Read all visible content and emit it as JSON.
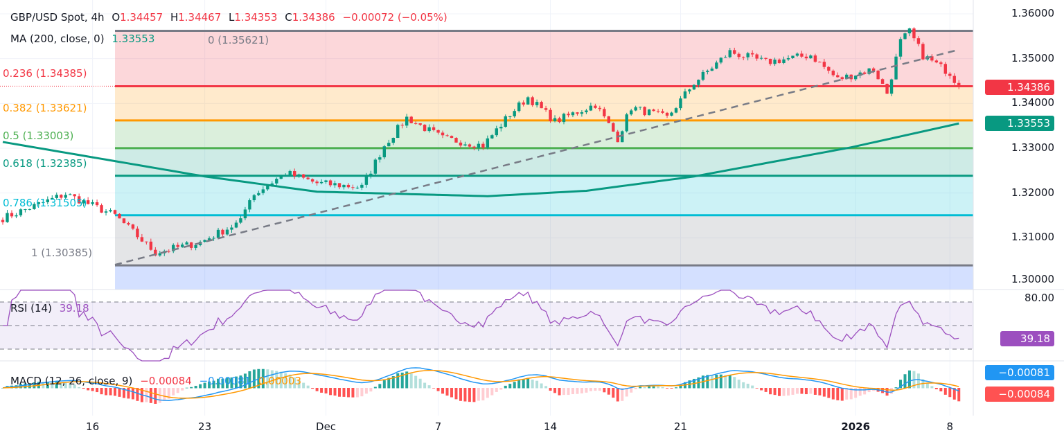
{
  "header": {
    "symbol": "GBP/USD Spot, 4h",
    "o_label": "O",
    "o": "1.34457",
    "h_label": "H",
    "h": "1.34467",
    "l_label": "L",
    "l": "1.34353",
    "c_label": "C",
    "c": "1.34386",
    "change": "−0.00072 (−0.05%)",
    "ma_label": "MA (200, close, 0)",
    "ma_value": "1.33553"
  },
  "colors": {
    "up": "#089981",
    "down": "#f23645",
    "ma": "#089981",
    "rsi": "#9c4fbf",
    "macd": "#2196f3",
    "signal": "#ff9800"
  },
  "chart_data": [
    {
      "type": "candlestick",
      "title": "GBP/USD Spot, 4h",
      "ylim": [
        1.3,
        1.36
      ],
      "y_ticks": [
        "1.36000",
        "1.35000",
        "1.34000",
        "1.33000",
        "1.32000",
        "1.31000",
        "1.30000"
      ],
      "x_ticks": [
        {
          "bar": 20,
          "label": "16"
        },
        {
          "bar": 45,
          "label": "23"
        },
        {
          "bar": 72,
          "label": "Dec"
        },
        {
          "bar": 97,
          "label": "7"
        },
        {
          "bar": 122,
          "label": "14"
        },
        {
          "bar": 151,
          "label": "21"
        },
        {
          "bar": 190,
          "label": "2026"
        },
        {
          "bar": 211,
          "label": "8"
        }
      ],
      "close_path": [
        {
          "bar": 0,
          "close": 1.3144
        },
        {
          "bar": 14,
          "close": 1.3198
        },
        {
          "bar": 25,
          "close": 1.315
        },
        {
          "bar": 34,
          "close": 1.3067
        },
        {
          "bar": 44,
          "close": 1.309
        },
        {
          "bar": 53,
          "close": 1.3136
        },
        {
          "bar": 55,
          "close": 1.319
        },
        {
          "bar": 63,
          "close": 1.3245
        },
        {
          "bar": 70,
          "close": 1.3222
        },
        {
          "bar": 80,
          "close": 1.3213
        },
        {
          "bar": 85,
          "close": 1.3306
        },
        {
          "bar": 90,
          "close": 1.3368
        },
        {
          "bar": 98,
          "close": 1.3322
        },
        {
          "bar": 107,
          "close": 1.3306
        },
        {
          "bar": 113,
          "close": 1.3376
        },
        {
          "bar": 117,
          "close": 1.3414
        },
        {
          "bar": 123,
          "close": 1.336
        },
        {
          "bar": 132,
          "close": 1.3398
        },
        {
          "bar": 137,
          "close": 1.3322
        },
        {
          "bar": 140,
          "close": 1.3391
        },
        {
          "bar": 148,
          "close": 1.3368
        },
        {
          "bar": 154,
          "close": 1.3446
        },
        {
          "bar": 162,
          "close": 1.3515
        },
        {
          "bar": 170,
          "close": 1.3492
        },
        {
          "bar": 180,
          "close": 1.3508
        },
        {
          "bar": 186,
          "close": 1.3454
        },
        {
          "bar": 194,
          "close": 1.3477
        },
        {
          "bar": 197,
          "close": 1.3423
        },
        {
          "bar": 200,
          "close": 1.3538
        },
        {
          "bar": 202,
          "close": 1.356
        },
        {
          "bar": 205,
          "close": 1.3507
        },
        {
          "bar": 211,
          "close": 1.3468
        },
        {
          "bar": 213,
          "close": 1.34386
        }
      ],
      "last_price": "1.34386",
      "ma200": {
        "name": "MA (200, close, 0)",
        "points": [
          {
            "bar": 0,
            "value": 1.3314
          },
          {
            "bar": 45,
            "value": 1.3237
          },
          {
            "bar": 70,
            "value": 1.3203
          },
          {
            "bar": 108,
            "value": 1.3193
          },
          {
            "bar": 130,
            "value": 1.3205
          },
          {
            "bar": 154,
            "value": 1.3237
          },
          {
            "bar": 189,
            "value": 1.3302
          },
          {
            "bar": 213,
            "value": 1.33553
          }
        ],
        "last": "1.33553"
      },
      "trendline": {
        "style": "dashed",
        "from": {
          "bar": 25,
          "price": 1.304
        },
        "to": {
          "bar": 213,
          "price": 1.352
        }
      },
      "fibonacci": {
        "from_bar": 25,
        "levels": [
          {
            "ratio": "0",
            "price": "1.35621",
            "color": "#787b86"
          },
          {
            "ratio": "0.236",
            "price": "1.34385",
            "color": "#f23645"
          },
          {
            "ratio": "0.382",
            "price": "1.33621",
            "color": "#ff9800"
          },
          {
            "ratio": "0.5",
            "price": "1.33003",
            "color": "#4caf50"
          },
          {
            "ratio": "0.618",
            "price": "1.32385",
            "color": "#089981"
          },
          {
            "ratio": "0.786",
            "price": "1.31505",
            "color": "#00bcd4"
          },
          {
            "ratio": "1",
            "price": "1.30385",
            "color": "#787b86"
          }
        ]
      }
    },
    {
      "type": "line",
      "title": "RSI (14)",
      "value": "39.18",
      "y_ticks": [
        "80.00"
      ],
      "bands": [
        30,
        50,
        70
      ]
    },
    {
      "type": "macd",
      "title": "MACD (12, 26, close, 9)",
      "macd": "−0.00081",
      "signal": "−0.00084",
      "histogram": "0.00003"
    }
  ]
}
